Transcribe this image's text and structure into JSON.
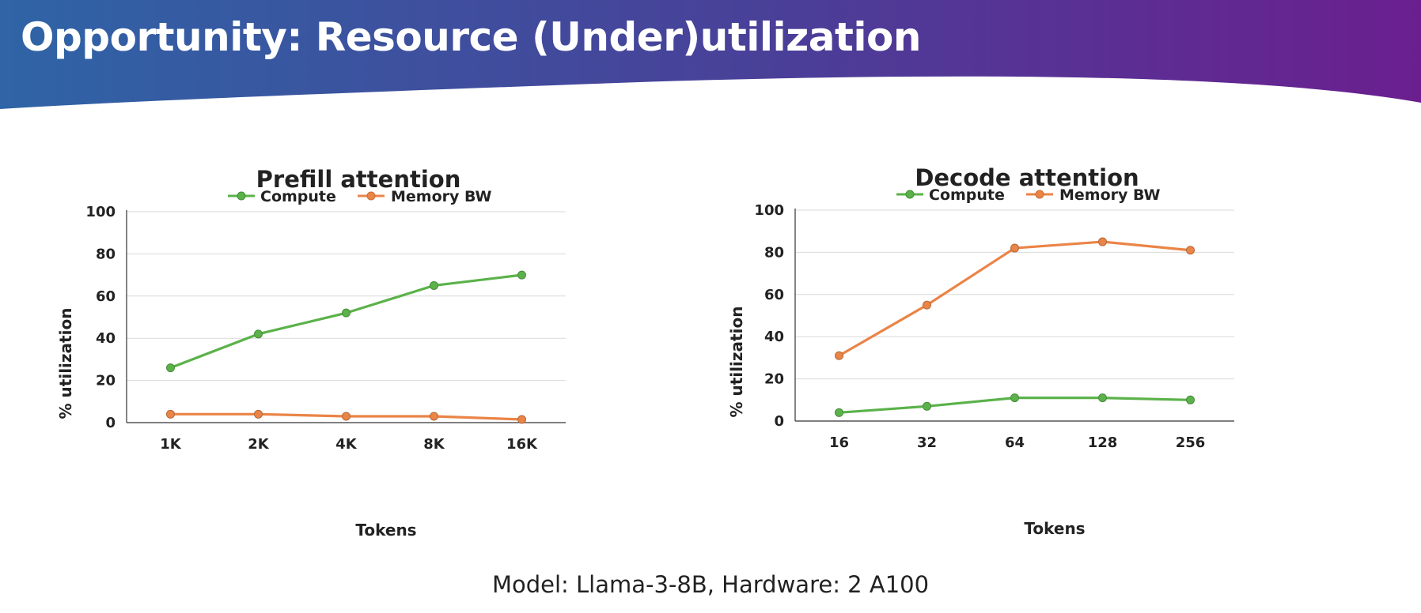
{
  "slide": {
    "title": "Opportunity: Resource (Under)utilization",
    "caption": "Model: Llama-3-8B, Hardware: 2 A100"
  },
  "colors": {
    "banner_start": "#2f64a6",
    "banner_mid": "#4a3f98",
    "banner_end": "#6b1f8f",
    "compute": "#5bb24a",
    "memory": "#ea8447"
  },
  "chart_data": [
    {
      "type": "line",
      "title": "Prefill attention",
      "xlabel": "Tokens",
      "ylabel": "% utilization",
      "categories": [
        "1K",
        "2K",
        "4K",
        "8K",
        "16K"
      ],
      "ylim": [
        0,
        100
      ],
      "yticks": [
        0,
        20,
        40,
        60,
        80,
        100
      ],
      "grid": true,
      "legend": "top",
      "series": [
        {
          "name": "Compute",
          "color": "#5bb24a",
          "values": [
            26,
            42,
            52,
            65,
            70
          ]
        },
        {
          "name": "Memory BW",
          "color": "#ea8447",
          "values": [
            4,
            4,
            3,
            3,
            1.5
          ]
        }
      ]
    },
    {
      "type": "line",
      "title": "Decode attention",
      "xlabel": "Tokens",
      "ylabel": "% utilization",
      "categories": [
        "16",
        "32",
        "64",
        "128",
        "256"
      ],
      "ylim": [
        0,
        100
      ],
      "yticks": [
        0,
        20,
        40,
        60,
        80,
        100
      ],
      "grid": true,
      "legend": "top",
      "series": [
        {
          "name": "Compute",
          "color": "#5bb24a",
          "values": [
            4,
            7,
            11,
            11,
            10
          ]
        },
        {
          "name": "Memory BW",
          "color": "#ea8447",
          "values": [
            31,
            55,
            82,
            85,
            81
          ]
        }
      ]
    }
  ]
}
